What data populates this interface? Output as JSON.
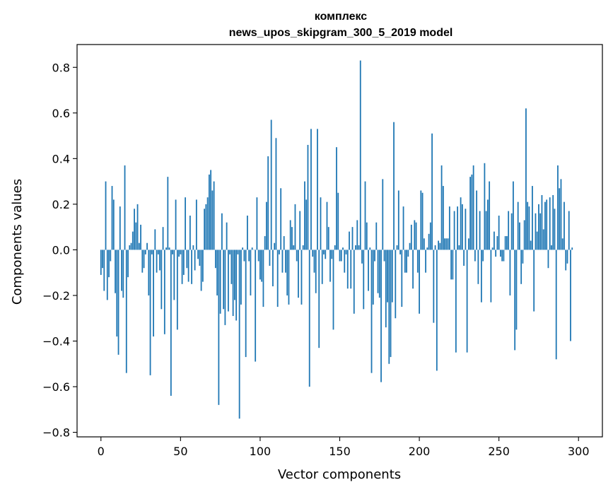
{
  "chart_data": {
    "type": "bar",
    "title": [
      "комплекс",
      "news_upos_skipgram_300_5_2019 model"
    ],
    "xlabel": "Vector components",
    "ylabel": "Components values",
    "xlim": [
      -15,
      315
    ],
    "ylim": [
      -0.82,
      0.9
    ],
    "xticks": [
      0,
      50,
      100,
      150,
      200,
      250,
      300
    ],
    "xtick_labels": [
      "0",
      "50",
      "100",
      "150",
      "200",
      "250",
      "300"
    ],
    "yticks": [
      -0.8,
      -0.6,
      -0.4,
      -0.2,
      0.0,
      0.2,
      0.4,
      0.6,
      0.8
    ],
    "ytick_labels": [
      "−0.8",
      "−0.6",
      "−0.4",
      "−0.2",
      "0.0",
      "0.2",
      "0.4",
      "0.6",
      "0.8"
    ],
    "grid": false,
    "bar_color": "#1f77b4",
    "values": [
      -0.11,
      -0.08,
      -0.18,
      0.3,
      -0.22,
      -0.12,
      -0.05,
      0.28,
      0.22,
      -0.19,
      -0.38,
      -0.46,
      0.19,
      -0.18,
      -0.21,
      0.37,
      -0.54,
      -0.12,
      0.02,
      0.03,
      0.08,
      0.18,
      0.12,
      0.2,
      0.03,
      0.11,
      -0.1,
      -0.08,
      -0.02,
      0.03,
      -0.2,
      -0.55,
      -0.02,
      -0.38,
      0.09,
      -0.1,
      -0.02,
      -0.09,
      -0.26,
      0.1,
      -0.37,
      0.01,
      0.32,
      0.01,
      -0.64,
      -0.02,
      -0.22,
      0.22,
      -0.35,
      -0.03,
      -0.02,
      -0.15,
      -0.11,
      0.23,
      -0.08,
      -0.14,
      0.15,
      -0.15,
      0.02,
      -0.09,
      0.22,
      -0.04,
      -0.07,
      -0.18,
      -0.14,
      0.18,
      0.2,
      0.23,
      0.33,
      0.35,
      0.26,
      0.3,
      -0.08,
      -0.2,
      -0.68,
      -0.28,
      0.16,
      -0.26,
      -0.33,
      0.12,
      -0.27,
      -0.02,
      -0.15,
      -0.29,
      -0.22,
      -0.31,
      -0.02,
      -0.74,
      -0.24,
      0.01,
      -0.05,
      -0.47,
      0.15,
      -0.05,
      -0.2,
      0.01,
      0.0,
      -0.49,
      0.23,
      -0.05,
      -0.13,
      -0.14,
      -0.25,
      0.06,
      0.21,
      0.41,
      -0.07,
      0.57,
      -0.16,
      0.03,
      0.49,
      -0.25,
      -0.02,
      0.27,
      -0.1,
      0.06,
      -0.1,
      -0.2,
      -0.24,
      0.13,
      0.1,
      0.02,
      0.2,
      -0.05,
      -0.21,
      0.17,
      -0.24,
      0.02,
      0.3,
      0.22,
      0.46,
      -0.6,
      0.53,
      -0.03,
      -0.1,
      -0.19,
      0.53,
      -0.43,
      0.23,
      -0.15,
      -0.02,
      -0.04,
      0.21,
      0.1,
      -0.14,
      -0.04,
      -0.35,
      0.02,
      0.45,
      0.25,
      -0.05,
      -0.05,
      0.01,
      -0.1,
      -0.02,
      -0.17,
      0.08,
      -0.17,
      0.1,
      -0.28,
      0.02,
      0.13,
      0.02,
      0.83,
      -0.06,
      -0.26,
      0.3,
      0.12,
      -0.18,
      0.01,
      -0.54,
      -0.24,
      -0.05,
      0.12,
      -0.19,
      -0.21,
      -0.58,
      0.31,
      -0.05,
      -0.34,
      -0.23,
      -0.5,
      -0.47,
      -0.23,
      0.56,
      -0.3,
      0.02,
      0.26,
      -0.02,
      -0.25,
      0.19,
      -0.1,
      -0.1,
      -0.03,
      0.03,
      0.11,
      -0.17,
      0.13,
      0.12,
      -0.1,
      -0.28,
      0.26,
      0.25,
      0.05,
      -0.1,
      0.01,
      0.07,
      0.12,
      0.51,
      -0.32,
      0.02,
      -0.53,
      0.04,
      0.03,
      0.37,
      0.28,
      0.05,
      0.05,
      0.05,
      0.19,
      -0.13,
      -0.13,
      0.17,
      -0.45,
      0.19,
      0.02,
      0.23,
      0.2,
      -0.07,
      0.18,
      -0.45,
      0.05,
      0.32,
      0.33,
      0.37,
      -0.05,
      0.26,
      -0.15,
      0.17,
      -0.23,
      -0.05,
      0.38,
      0.17,
      0.22,
      0.3,
      -0.23,
      0.01,
      0.08,
      -0.03,
      0.06,
      0.15,
      -0.03,
      -0.05,
      -0.05,
      0.06,
      0.06,
      0.17,
      -0.2,
      0.16,
      0.3,
      -0.44,
      -0.35,
      0.21,
      0.12,
      -0.15,
      -0.06,
      0.13,
      0.62,
      0.21,
      0.19,
      0.04,
      0.28,
      -0.27,
      0.16,
      0.08,
      0.2,
      0.16,
      0.24,
      0.09,
      0.21,
      0.22,
      -0.08,
      0.23,
      0.02,
      0.24,
      0.18,
      -0.48,
      0.37,
      0.27,
      0.31,
      0.05,
      0.21,
      -0.09,
      -0.06,
      0.17,
      -0.4,
      0.01
    ]
  }
}
